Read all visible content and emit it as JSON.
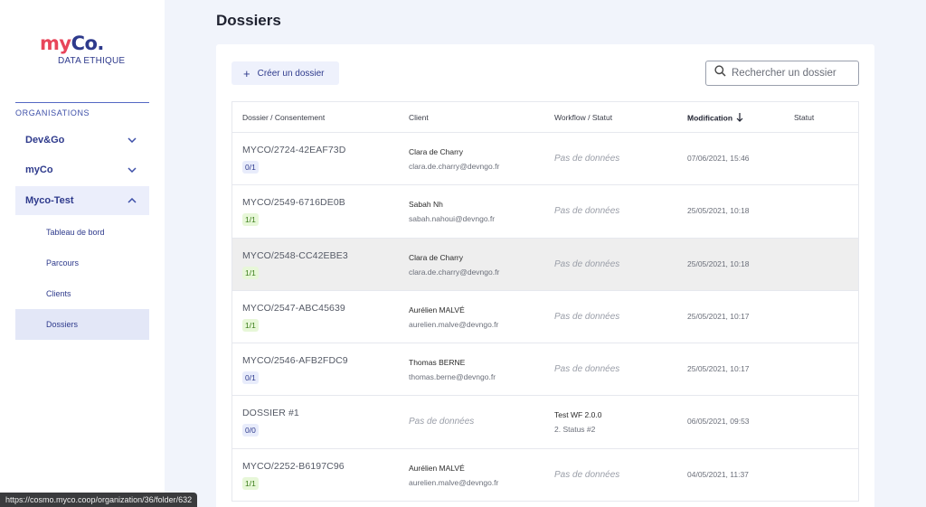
{
  "sidebar": {
    "logo": {
      "my": "my",
      "co": "Co.",
      "subtitle": "DATA ETHIQUE"
    },
    "section_label": "ORGANISATIONS",
    "orgs": [
      {
        "label": "Dev&Go",
        "expanded": false
      },
      {
        "label": "myCo",
        "expanded": false
      },
      {
        "label": "Myco-Test",
        "expanded": true
      }
    ],
    "subitems": [
      {
        "label": "Tableau de bord"
      },
      {
        "label": "Parcours"
      },
      {
        "label": "Clients"
      },
      {
        "label": "Dossiers",
        "active": true
      }
    ]
  },
  "page": {
    "title": "Dossiers",
    "create_button": "Créer un dossier",
    "search_placeholder": "Rechercher un dossier"
  },
  "table": {
    "headers": {
      "dossier": "Dossier / Consentement",
      "client": "Client",
      "workflow": "Workflow / Statut",
      "modification": "Modification",
      "statut": "Statut"
    },
    "rows": [
      {
        "ref": "MYCO/2724-42EAF73D",
        "consent": "0/1",
        "consent_color": "blue",
        "client_name": "Clara de Charry",
        "client_email": "clara.de.charry@devngo.fr",
        "workflow": "Pas de données",
        "date": "07/06/2021, 15:46"
      },
      {
        "ref": "MYCO/2549-6716DE0B",
        "consent": "1/1",
        "consent_color": "green",
        "client_name": "Sabah Nh",
        "client_email": "sabah.nahoui@devngo.fr",
        "workflow": "Pas de données",
        "date": "25/05/2021, 10:18"
      },
      {
        "ref": "MYCO/2548-CC42EBE3",
        "consent": "1/1",
        "consent_color": "green",
        "client_name": "Clara de Charry",
        "client_email": "clara.de.charry@devngo.fr",
        "workflow": "Pas de données",
        "date": "25/05/2021, 10:18"
      },
      {
        "ref": "MYCO/2547-ABC45639",
        "consent": "1/1",
        "consent_color": "green",
        "client_name": "Aurélien MALVÉ",
        "client_email": "aurelien.malve@devngo.fr",
        "workflow": "Pas de données",
        "date": "25/05/2021, 10:17"
      },
      {
        "ref": "MYCO/2546-AFB2FDC9",
        "consent": "0/1",
        "consent_color": "blue",
        "client_name": "Thomas BERNE",
        "client_email": "thomas.berne@devngo.fr",
        "workflow": "Pas de données",
        "date": "25/05/2021, 10:17"
      },
      {
        "ref": "DOSSIER #1",
        "consent": "0/0",
        "consent_color": "blue",
        "client_nodata": "Pas de données",
        "workflow_name": "Test WF 2.0.0",
        "workflow_status": "2. Status #2",
        "date": "06/05/2021, 09:53"
      },
      {
        "ref": "MYCO/2252-B6197C96",
        "consent": "1/1",
        "consent_color": "green",
        "client_name": "Aurélien MALVÉ",
        "client_email": "aurelien.malve@devngo.fr",
        "workflow": "Pas de données",
        "date": "04/05/2021, 11:37"
      }
    ]
  },
  "status_bar": {
    "url": "https://cosmo.myco.coop/organization/36/folder/632"
  },
  "colors": {
    "brand_red": "#e8455a",
    "brand_blue": "#2e3a8c",
    "background": "#f1f4fb"
  }
}
